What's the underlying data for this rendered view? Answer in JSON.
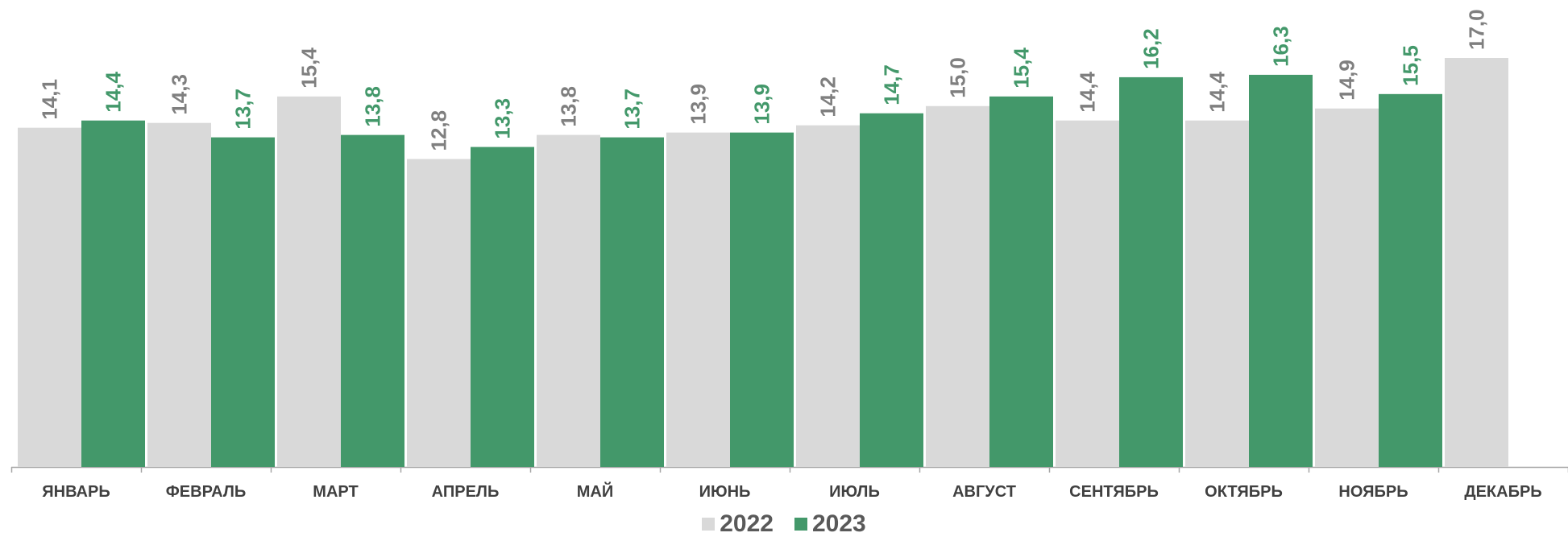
{
  "chart_data": {
    "type": "bar",
    "categories": [
      "ЯНВАРЬ",
      "ФЕВРАЛЬ",
      "МАРТ",
      "АПРЕЛЬ",
      "МАЙ",
      "ИЮНЬ",
      "ИЮЛЬ",
      "АВГУСТ",
      "СЕНТЯБРЬ",
      "ОКТЯБРЬ",
      "НОЯБРЬ",
      "ДЕКАБРЬ"
    ],
    "series": [
      {
        "name": "2022",
        "color": "#d9d9d9",
        "label_color": "#7f7f7f",
        "values": [
          14.1,
          14.3,
          15.4,
          12.8,
          13.8,
          13.9,
          14.2,
          15.0,
          14.4,
          14.4,
          14.9,
          17.0
        ],
        "labels": [
          "14,1",
          "14,3",
          "15,4",
          "12,8",
          "13,8",
          "13,9",
          "14,2",
          "15,0",
          "14,4",
          "14,4",
          "14,9",
          "17,0"
        ]
      },
      {
        "name": "2023",
        "color": "#43986a",
        "label_color": "#43986a",
        "values": [
          14.4,
          13.7,
          13.8,
          13.3,
          13.7,
          13.9,
          14.7,
          15.4,
          16.2,
          16.3,
          15.5,
          null
        ],
        "labels": [
          "14,4",
          "13,7",
          "13,8",
          "13,3",
          "13,7",
          "13,9",
          "14,7",
          "15,4",
          "16,2",
          "16,3",
          "15,5",
          ""
        ]
      }
    ],
    "ylim": [
      0,
      17.0
    ],
    "grid": false,
    "legend_position": "bottom"
  }
}
